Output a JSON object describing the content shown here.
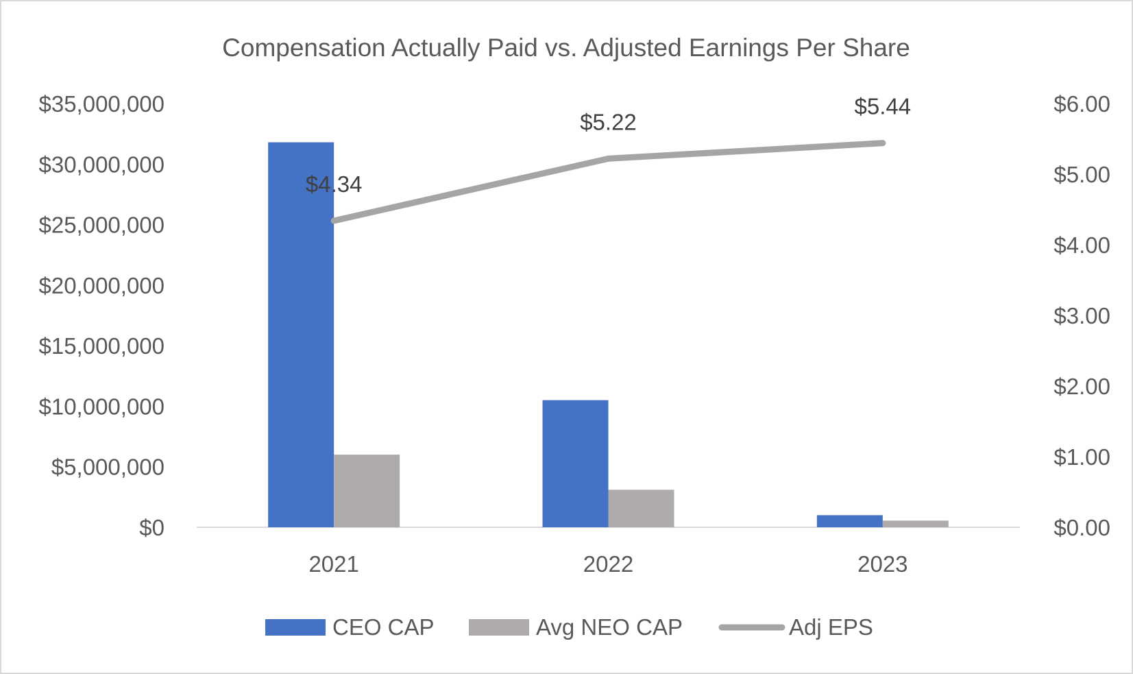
{
  "chart_data": {
    "type": "bar",
    "title": "Compensation Actually Paid vs. Adjusted Earnings Per Share",
    "categories": [
      "2021",
      "2022",
      "2023"
    ],
    "series": [
      {
        "name": "CEO CAP",
        "type": "bar",
        "axis": "left",
        "color": "#4472c4",
        "values": [
          31800000,
          10500000,
          1000000
        ]
      },
      {
        "name": "Avg NEO CAP",
        "type": "bar",
        "axis": "left",
        "color": "#afabab",
        "values": [
          6000000,
          3100000,
          550000
        ]
      },
      {
        "name": "Adj EPS",
        "type": "line",
        "axis": "right",
        "color": "#a5a5a5",
        "values": [
          4.34,
          5.22,
          5.44
        ],
        "data_labels": [
          "$4.34",
          "$5.22",
          "$5.44"
        ]
      }
    ],
    "y_left": {
      "min": 0,
      "max": 35000000,
      "ticks": [
        {
          "value": 0,
          "label": "$0"
        },
        {
          "value": 5000000,
          "label": "$5,000,000"
        },
        {
          "value": 10000000,
          "label": "$10,000,000"
        },
        {
          "value": 15000000,
          "label": "$15,000,000"
        },
        {
          "value": 20000000,
          "label": "$20,000,000"
        },
        {
          "value": 25000000,
          "label": "$25,000,000"
        },
        {
          "value": 30000000,
          "label": "$30,000,000"
        },
        {
          "value": 35000000,
          "label": "$35,000,000"
        }
      ]
    },
    "y_right": {
      "min": 0,
      "max": 6,
      "ticks": [
        {
          "value": 0,
          "label": "$0.00"
        },
        {
          "value": 1,
          "label": "$1.00"
        },
        {
          "value": 2,
          "label": "$2.00"
        },
        {
          "value": 3,
          "label": "$3.00"
        },
        {
          "value": 4,
          "label": "$4.00"
        },
        {
          "value": 5,
          "label": "$5.00"
        },
        {
          "value": 6,
          "label": "$6.00"
        }
      ]
    },
    "grid": false,
    "legend_position": "bottom"
  }
}
